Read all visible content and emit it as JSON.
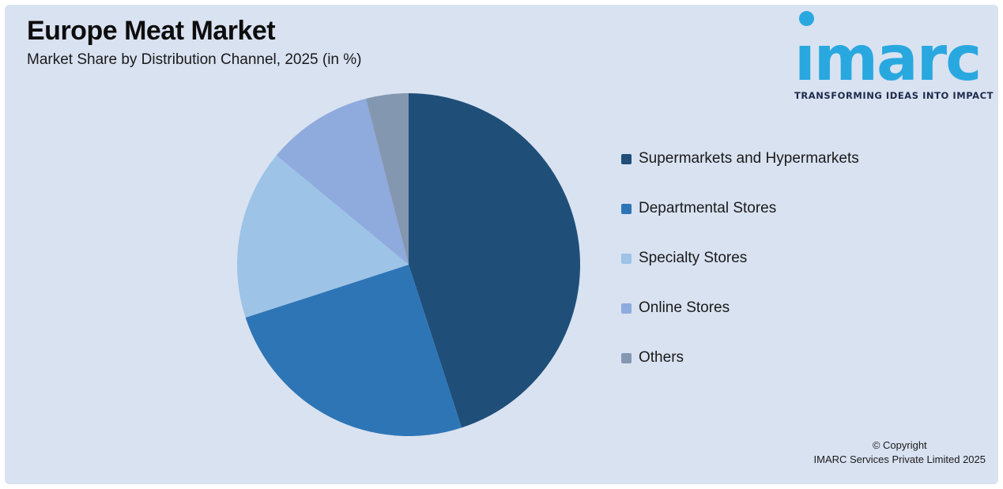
{
  "header": {
    "title": "Europe Meat Market",
    "subtitle": "Market Share by Distribution Channel, 2025 (in %)"
  },
  "logo": {
    "wordmark": "imarc",
    "tagline": "TRANSFORMING IDEAS INTO IMPACT",
    "brand_color": "#29A8E0",
    "tagline_color": "#1E2A4A"
  },
  "chart_data": {
    "type": "pie",
    "title": "Europe Meat Market",
    "subtitle": "Market Share by Distribution Channel, 2025 (in %)",
    "categories": [
      "Supermarkets and Hypermarkets",
      "Departmental Stores",
      "Specialty Stores",
      "Online Stores",
      "Others"
    ],
    "values": [
      45,
      25,
      16,
      10,
      4
    ],
    "unit": "%",
    "colors": [
      "#1F4E79",
      "#2E75B6",
      "#9DC3E6",
      "#8FAADC",
      "#8497B0"
    ],
    "start_angle_deg": 0,
    "direction": "clockwise",
    "legend_position": "right",
    "data_labels": false
  },
  "legend": {
    "items": [
      {
        "label": "Supermarkets and Hypermarkets",
        "color": "#1F4E79"
      },
      {
        "label": "Departmental Stores",
        "color": "#2E75B6"
      },
      {
        "label": "Specialty Stores",
        "color": "#9DC3E6"
      },
      {
        "label": "Online Stores",
        "color": "#8FAADC"
      },
      {
        "label": "Others",
        "color": "#8497B0"
      }
    ]
  },
  "footer": {
    "copyright_line1": "© Copyright",
    "copyright_line2": "IMARC Services Private Limited 2025"
  },
  "canvas": {
    "background": "#D9E2F1",
    "page_background": "#FFFFFF"
  }
}
